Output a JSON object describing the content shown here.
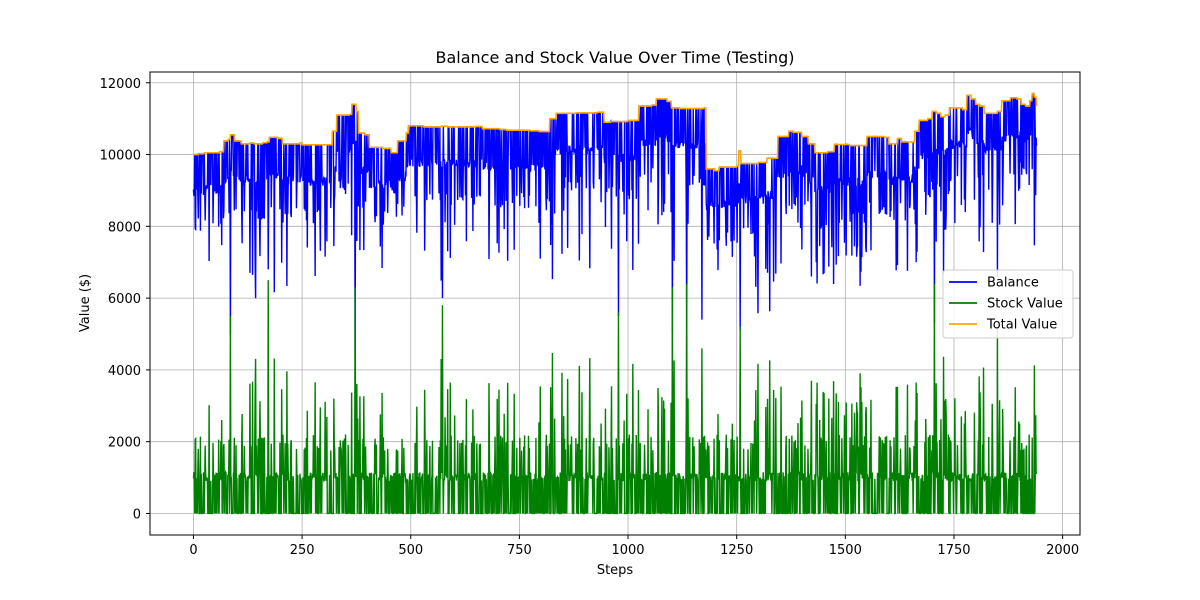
{
  "chart_data": {
    "type": "line",
    "title": "Balance and Stock Value Over Time (Testing)",
    "xlabel": "Steps",
    "ylabel": "Value ($)",
    "xlim": [
      -100,
      2040
    ],
    "ylim": [
      -600,
      12300
    ],
    "xticks": [
      0,
      250,
      500,
      750,
      1000,
      1250,
      1500,
      1750,
      2000
    ],
    "yticks": [
      0,
      2000,
      4000,
      6000,
      8000,
      10000,
      12000
    ],
    "grid": true,
    "legend_position": "center-right",
    "series": [
      {
        "name": "Balance",
        "color": "#0000ff"
      },
      {
        "name": "Stock Value",
        "color": "#008000"
      },
      {
        "name": "Total Value",
        "color": "#ffa500"
      }
    ],
    "total_value_steps": [
      [
        0,
        10000
      ],
      [
        10,
        10020
      ],
      [
        25,
        10050
      ],
      [
        60,
        10080
      ],
      [
        70,
        10380
      ],
      [
        80,
        10420
      ],
      [
        85,
        10550
      ],
      [
        95,
        10380
      ],
      [
        110,
        10300
      ],
      [
        130,
        10320
      ],
      [
        140,
        10300
      ],
      [
        160,
        10330
      ],
      [
        170,
        10350
      ],
      [
        175,
        10480
      ],
      [
        195,
        10450
      ],
      [
        205,
        10300
      ],
      [
        245,
        10330
      ],
      [
        250,
        10270
      ],
      [
        300,
        10270
      ],
      [
        320,
        10650
      ],
      [
        330,
        11100
      ],
      [
        360,
        11120
      ],
      [
        365,
        11400
      ],
      [
        375,
        11200
      ],
      [
        380,
        10600
      ],
      [
        395,
        10550
      ],
      [
        405,
        10200
      ],
      [
        435,
        10170
      ],
      [
        455,
        10050
      ],
      [
        470,
        10380
      ],
      [
        490,
        10600
      ],
      [
        495,
        10800
      ],
      [
        530,
        10770
      ],
      [
        570,
        10790
      ],
      [
        585,
        10770
      ],
      [
        650,
        10780
      ],
      [
        665,
        10720
      ],
      [
        705,
        10700
      ],
      [
        720,
        10680
      ],
      [
        775,
        10660
      ],
      [
        795,
        10640
      ],
      [
        820,
        11000
      ],
      [
        835,
        11150
      ],
      [
        880,
        11160
      ],
      [
        930,
        11180
      ],
      [
        945,
        10900
      ],
      [
        960,
        10920
      ],
      [
        1000,
        10950
      ],
      [
        1025,
        11350
      ],
      [
        1055,
        11380
      ],
      [
        1065,
        11550
      ],
      [
        1090,
        11480
      ],
      [
        1100,
        11300
      ],
      [
        1120,
        11280
      ],
      [
        1175,
        11300
      ],
      [
        1180,
        9600
      ],
      [
        1200,
        9550
      ],
      [
        1210,
        9650
      ],
      [
        1250,
        9680
      ],
      [
        1255,
        10100
      ],
      [
        1260,
        9750
      ],
      [
        1300,
        9780
      ],
      [
        1320,
        9900
      ],
      [
        1345,
        10500
      ],
      [
        1370,
        10650
      ],
      [
        1380,
        10620
      ],
      [
        1400,
        10500
      ],
      [
        1415,
        10300
      ],
      [
        1430,
        10050
      ],
      [
        1460,
        10080
      ],
      [
        1475,
        10280
      ],
      [
        1510,
        10250
      ],
      [
        1550,
        10500
      ],
      [
        1590,
        10480
      ],
      [
        1600,
        10300
      ],
      [
        1620,
        10450
      ],
      [
        1630,
        10350
      ],
      [
        1650,
        10350
      ],
      [
        1660,
        10650
      ],
      [
        1670,
        10950
      ],
      [
        1690,
        11000
      ],
      [
        1700,
        11200
      ],
      [
        1710,
        11150
      ],
      [
        1720,
        11050
      ],
      [
        1730,
        11100
      ],
      [
        1740,
        11300
      ],
      [
        1770,
        11250
      ],
      [
        1780,
        11650
      ],
      [
        1790,
        11550
      ],
      [
        1800,
        11400
      ],
      [
        1810,
        11350
      ],
      [
        1820,
        11150
      ],
      [
        1850,
        11200
      ],
      [
        1860,
        11500
      ],
      [
        1880,
        11580
      ],
      [
        1895,
        11550
      ],
      [
        1905,
        11400
      ],
      [
        1915,
        11350
      ],
      [
        1925,
        11500
      ],
      [
        1930,
        11700
      ],
      [
        1935,
        11600
      ],
      [
        1940,
        11350
      ]
    ],
    "big_excursions": [
      {
        "x": 85,
        "balance": 5000,
        "stock": 5500
      },
      {
        "x": 172,
        "balance": 6800,
        "stock": 6500
      },
      {
        "x": 372,
        "balance": 4300,
        "stock": 6300
      },
      {
        "x": 573,
        "balance": 6000,
        "stock": 5800
      },
      {
        "x": 978,
        "balance": 5500,
        "stock": 5600
      },
      {
        "x": 1102,
        "balance": 5000,
        "stock": 6300
      },
      {
        "x": 1135,
        "balance": 5000,
        "stock": 6400
      },
      {
        "x": 1170,
        "balance": 5400,
        "stock": 4600
      },
      {
        "x": 1258,
        "balance": 5100,
        "stock": 5200
      },
      {
        "x": 1705,
        "balance": 5300,
        "stock": 6400
      },
      {
        "x": 1850,
        "balance": 6600,
        "stock": 5200
      }
    ]
  }
}
